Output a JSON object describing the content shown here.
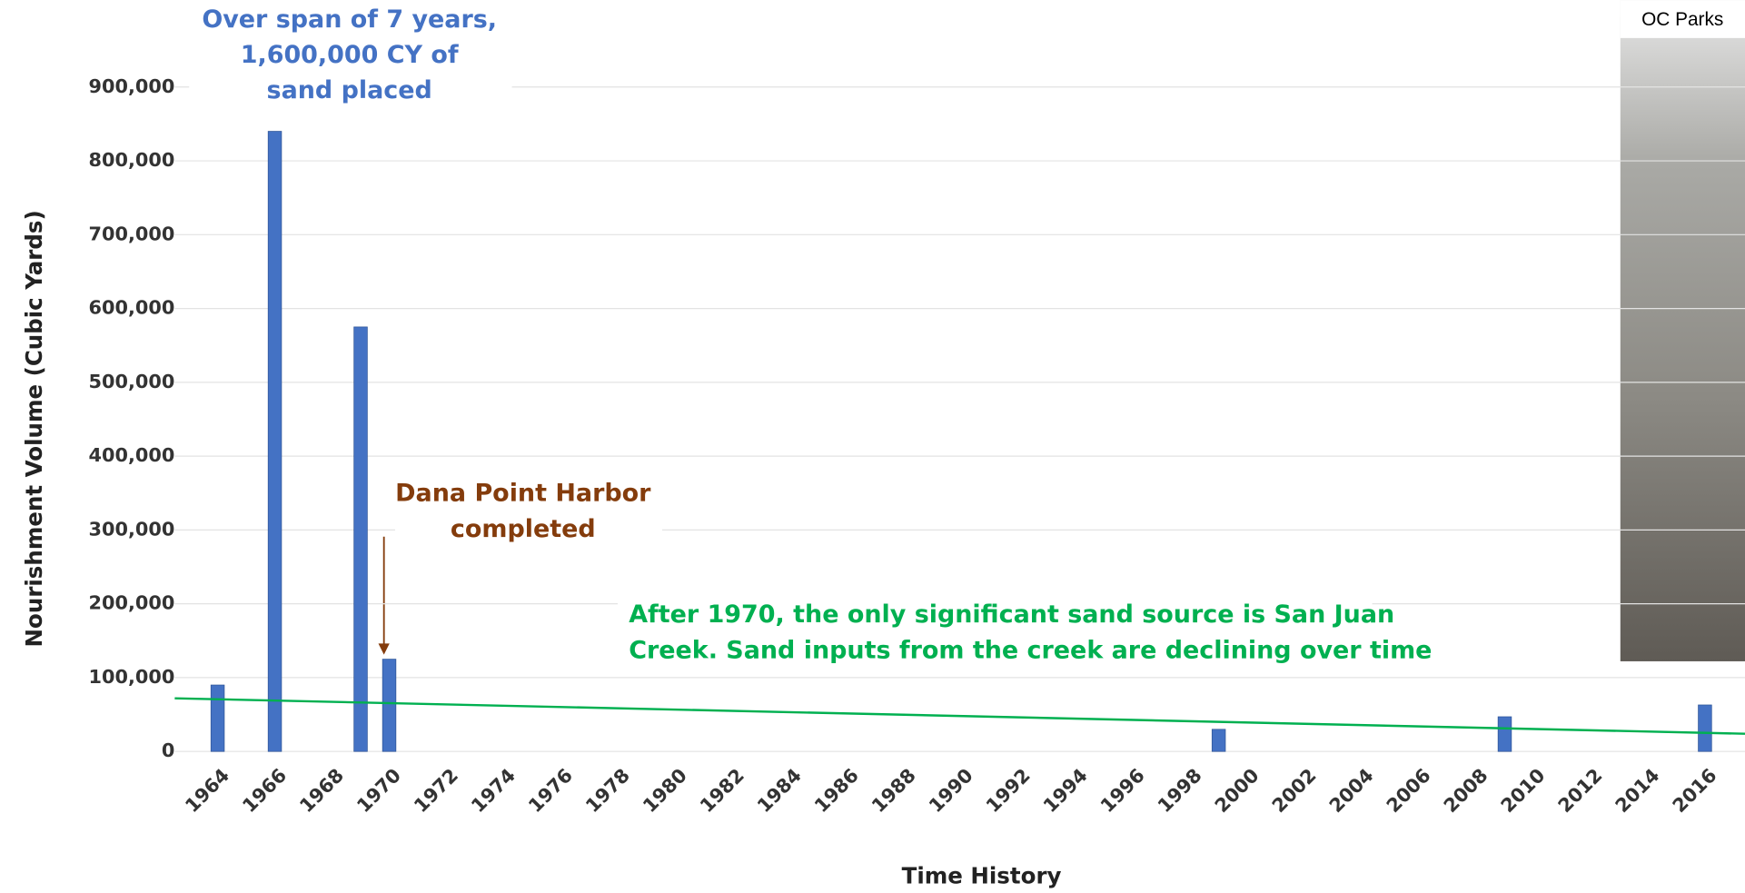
{
  "chart_data": {
    "type": "bar",
    "x": [
      1964,
      1966,
      1969,
      1970,
      1999,
      2009,
      2016
    ],
    "values": [
      90000,
      840000,
      575000,
      125000,
      30000,
      47000,
      63000
    ],
    "color": "#4472c4",
    "xlim": [
      1962.5,
      2017.4
    ],
    "xticks": [
      1964,
      1966,
      1968,
      1970,
      1972,
      1974,
      1976,
      1978,
      1980,
      1982,
      1984,
      1986,
      1988,
      1990,
      1992,
      1994,
      1996,
      1998,
      2000,
      2002,
      2004,
      2006,
      2008,
      2010,
      2012,
      2014,
      2016
    ],
    "ylim": [
      0,
      900000
    ],
    "yticks": [
      0,
      {
        "value": 100000,
        "label": "100,000"
      },
      {
        "value": 200000,
        "label": "200,000"
      },
      {
        "value": 300000,
        "label": "300,000"
      },
      {
        "value": 400000,
        "label": "400,000"
      },
      {
        "value": 500000,
        "label": "500,000"
      },
      {
        "value": 600000,
        "label": "600,000"
      },
      {
        "value": 700000,
        "label": "700,000"
      },
      {
        "value": 800000,
        "label": "800,000"
      },
      {
        "value": 900000,
        "label": "900,000"
      }
    ],
    "grid": true,
    "xlabel": "Time History",
    "ylabel": "Nourishment Volume (Cubic Yards)",
    "trend": {
      "x": [
        1962.5,
        2017.4
      ],
      "values": [
        72000,
        24000
      ],
      "color": "#00b050"
    },
    "annotations": [
      {
        "lines": [
          "Over span of 7 years,",
          "1,600,000 CY of",
          "sand placed"
        ],
        "color": "#4472c4"
      },
      {
        "lines": [
          "Dana Point Harbor",
          "completed"
        ],
        "color": "#843c0c"
      },
      {
        "lines": [
          "After 1970, the only significant sand source is San Juan",
          "Creek. Sand inputs from the creek are declining over time"
        ],
        "color": "#00b050"
      }
    ],
    "photo_caption": "OC  Parks"
  }
}
